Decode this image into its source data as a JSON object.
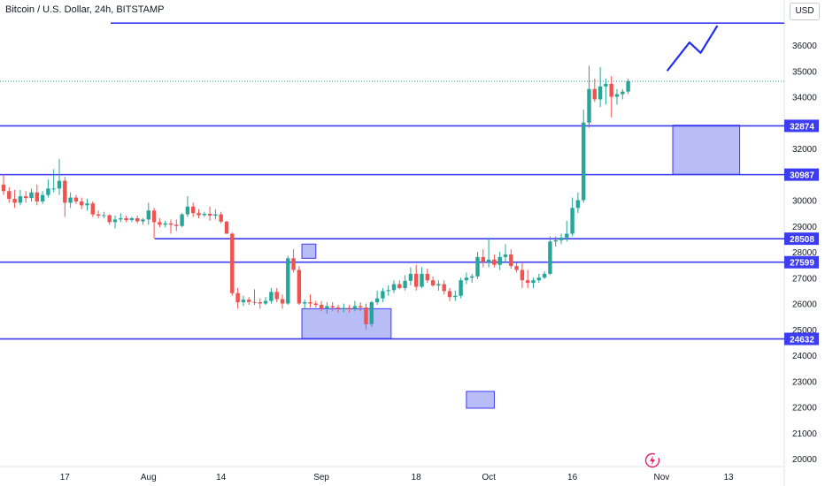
{
  "title": "Bitcoin / U.S. Dollar, 24h, BITSTAMP",
  "currency_button": "USD",
  "colors": {
    "up": "#26a69a",
    "down": "#ef5350",
    "level": "#3c3cf0",
    "zone_fill": "#b9bdf7",
    "arrow": "#1e2ef0",
    "grid": "#f0f3fa",
    "axis_text": "#131722",
    "price_line": "#26a69a"
  },
  "icons": {
    "logo": "tradingview-lightning-icon"
  },
  "chart_data": {
    "type": "candlestick",
    "symbol": "BTCUSD",
    "timeframe": "24h",
    "exchange": "BITSTAMP",
    "ylim": [
      19700,
      37600
    ],
    "y_ticks": [
      20000,
      21000,
      22000,
      23000,
      24000,
      25000,
      26000,
      27000,
      28000,
      29000,
      30000,
      31000,
      32000,
      33000,
      34000,
      35000,
      36000
    ],
    "x_ticks": [
      {
        "label": "17",
        "index": 11
      },
      {
        "label": "Aug",
        "index": 26
      },
      {
        "label": "14",
        "index": 39
      },
      {
        "label": "Sep",
        "index": 57
      },
      {
        "label": "18",
        "index": 74
      },
      {
        "label": "Oct",
        "index": 87
      },
      {
        "label": "16",
        "index": 102
      },
      {
        "label": "Nov",
        "index": 118
      },
      {
        "label": "13",
        "index": 130
      }
    ],
    "candles": [
      [
        30600,
        31000,
        30200,
        30350
      ],
      [
        30350,
        30500,
        29900,
        30050
      ],
      [
        30050,
        30400,
        29700,
        29900
      ],
      [
        29900,
        30400,
        29800,
        30150
      ],
      [
        30150,
        30350,
        29900,
        30080
      ],
      [
        30080,
        30450,
        29950,
        30300
      ],
      [
        30300,
        30600,
        29800,
        29950
      ],
      [
        29950,
        30350,
        29850,
        30200
      ],
      [
        30200,
        30800,
        30100,
        30450
      ],
      [
        30450,
        31200,
        30300,
        30450
      ],
      [
        30450,
        31600,
        30200,
        30750
      ],
      [
        30750,
        30900,
        29350,
        29900
      ],
      [
        29900,
        30300,
        29700,
        30100
      ],
      [
        30100,
        30200,
        29850,
        29950
      ],
      [
        29950,
        30100,
        29650,
        29800
      ],
      [
        29800,
        30050,
        29600,
        29870
      ],
      [
        29870,
        29950,
        29350,
        29450
      ],
      [
        29450,
        29600,
        29300,
        29400
      ],
      [
        29400,
        29550,
        29300,
        29420
      ],
      [
        29420,
        29450,
        29050,
        29150
      ],
      [
        29150,
        29400,
        28900,
        29250
      ],
      [
        29250,
        29500,
        29150,
        29300
      ],
      [
        29300,
        29400,
        29150,
        29230
      ],
      [
        29230,
        29350,
        29150,
        29300
      ],
      [
        29300,
        29400,
        29100,
        29180
      ],
      [
        29180,
        29300,
        29050,
        29250
      ],
      [
        29250,
        29900,
        29050,
        29600
      ],
      [
        29600,
        29700,
        28500,
        29150
      ],
      [
        29150,
        29300,
        28950,
        29050
      ],
      [
        29050,
        29200,
        28950,
        29100
      ],
      [
        29100,
        29250,
        28700,
        29050
      ],
      [
        29050,
        29250,
        28800,
        29000
      ],
      [
        29000,
        29500,
        28950,
        29450
      ],
      [
        29450,
        30150,
        29350,
        29750
      ],
      [
        29750,
        29900,
        29350,
        29500
      ],
      [
        29500,
        29650,
        29300,
        29420
      ],
      [
        29420,
        29550,
        29350,
        29470
      ],
      [
        29470,
        29750,
        29200,
        29400
      ],
      [
        29400,
        29650,
        29250,
        29450
      ],
      [
        29450,
        29550,
        29100,
        29170
      ],
      [
        29170,
        29200,
        28800,
        28700
      ],
      [
        28700,
        28750,
        26300,
        26400
      ],
      [
        26400,
        26600,
        25800,
        26050
      ],
      [
        26050,
        26300,
        25900,
        26150
      ],
      [
        26150,
        26250,
        25950,
        26060
      ],
      [
        26060,
        26550,
        25950,
        26050
      ],
      [
        26050,
        26200,
        25800,
        26000
      ],
      [
        26000,
        26250,
        25950,
        26100
      ],
      [
        26100,
        26600,
        26000,
        26450
      ],
      [
        26450,
        26600,
        26050,
        26170
      ],
      [
        26170,
        26350,
        25800,
        26000
      ],
      [
        26000,
        27850,
        25950,
        27750
      ],
      [
        27750,
        28100,
        27200,
        27300
      ],
      [
        27300,
        27450,
        25950,
        26000
      ],
      [
        26000,
        26150,
        25800,
        26050
      ],
      [
        26050,
        26350,
        25850,
        26000
      ],
      [
        26000,
        26100,
        25850,
        25950
      ],
      [
        25950,
        26100,
        25700,
        25800
      ],
      [
        25800,
        26050,
        25600,
        25900
      ],
      [
        25900,
        26050,
        25700,
        25850
      ],
      [
        25850,
        25950,
        25650,
        25800
      ],
      [
        25800,
        26000,
        25650,
        25830
      ],
      [
        25830,
        25950,
        25650,
        25820
      ],
      [
        25820,
        26100,
        25700,
        25900
      ],
      [
        25900,
        26050,
        25700,
        25850
      ],
      [
        25850,
        26000,
        25000,
        25200
      ],
      [
        25200,
        26100,
        25100,
        26050
      ],
      [
        26050,
        26500,
        25950,
        26200
      ],
      [
        26200,
        26600,
        26050,
        26480
      ],
      [
        26480,
        26700,
        26300,
        26520
      ],
      [
        26520,
        26900,
        26400,
        26750
      ],
      [
        26750,
        26900,
        26550,
        26600
      ],
      [
        26600,
        27100,
        26500,
        26880
      ],
      [
        26880,
        27400,
        26700,
        27150
      ],
      [
        27150,
        27500,
        26500,
        26650
      ],
      [
        26650,
        27400,
        26600,
        27150
      ],
      [
        27150,
        27350,
        26800,
        26900
      ],
      [
        26900,
        27050,
        26650,
        26700
      ],
      [
        26700,
        26900,
        26500,
        26750
      ],
      [
        26750,
        26900,
        26350,
        26480
      ],
      [
        26480,
        26600,
        26100,
        26250
      ],
      [
        26250,
        26500,
        26100,
        26300
      ],
      [
        26300,
        27000,
        26200,
        26900
      ],
      [
        26900,
        27200,
        26750,
        27000
      ],
      [
        27000,
        27150,
        26800,
        27050
      ],
      [
        27050,
        28000,
        26950,
        27800
      ],
      [
        27800,
        28100,
        27400,
        27600
      ],
      [
        27600,
        28550,
        27400,
        27700
      ],
      [
        27700,
        27900,
        27400,
        27500
      ],
      [
        27500,
        28000,
        27300,
        27800
      ],
      [
        27800,
        28300,
        27600,
        27900
      ],
      [
        27900,
        28100,
        27350,
        27450
      ],
      [
        27450,
        27600,
        27200,
        27300
      ],
      [
        27300,
        27600,
        26600,
        26900
      ],
      [
        26900,
        27300,
        26600,
        26800
      ],
      [
        26800,
        27000,
        26600,
        26900
      ],
      [
        26900,
        27150,
        26800,
        27000
      ],
      [
        27000,
        27250,
        26950,
        27150
      ],
      [
        27150,
        28600,
        27100,
        28400
      ],
      [
        28400,
        28600,
        28200,
        28450
      ],
      [
        28450,
        28700,
        28300,
        28550
      ],
      [
        28550,
        29200,
        28400,
        28700
      ],
      [
        28700,
        30100,
        28600,
        29700
      ],
      [
        29700,
        30300,
        29500,
        30000
      ],
      [
        30000,
        33500,
        29900,
        33000
      ],
      [
        33000,
        35200,
        32800,
        34300
      ],
      [
        34300,
        34700,
        33800,
        33900
      ],
      [
        33900,
        35150,
        33600,
        34400
      ],
      [
        34400,
        34700,
        33700,
        34500
      ],
      [
        34500,
        34800,
        33200,
        34000
      ],
      [
        34000,
        34300,
        33700,
        34100
      ],
      [
        34100,
        34300,
        33900,
        34200
      ],
      [
        34200,
        34700,
        34100,
        34600
      ]
    ],
    "last_price": 34600,
    "horizontal_levels": [
      {
        "price": 36850,
        "label": ""
      },
      {
        "price": 32874,
        "label": "32874"
      },
      {
        "price": 30987,
        "label": "30987"
      },
      {
        "price": 28508,
        "label": "28508"
      },
      {
        "price": 27599,
        "label": "27599"
      },
      {
        "price": 24632,
        "label": "24632"
      }
    ],
    "zones": [
      {
        "i0": 53.5,
        "i1": 56,
        "top": 28300,
        "bottom": 27750
      },
      {
        "i0": 53.5,
        "i1": 69.5,
        "top": 25800,
        "bottom": 24650
      },
      {
        "i0": 83,
        "i1": 88,
        "top": 22600,
        "bottom": 21950
      },
      {
        "i0": 120,
        "i1": 132,
        "top": 32900,
        "bottom": 31000
      }
    ],
    "projection": [
      [
        119,
        35000
      ],
      [
        123,
        36100
      ],
      [
        125,
        35700
      ],
      [
        128,
        36750
      ]
    ]
  }
}
